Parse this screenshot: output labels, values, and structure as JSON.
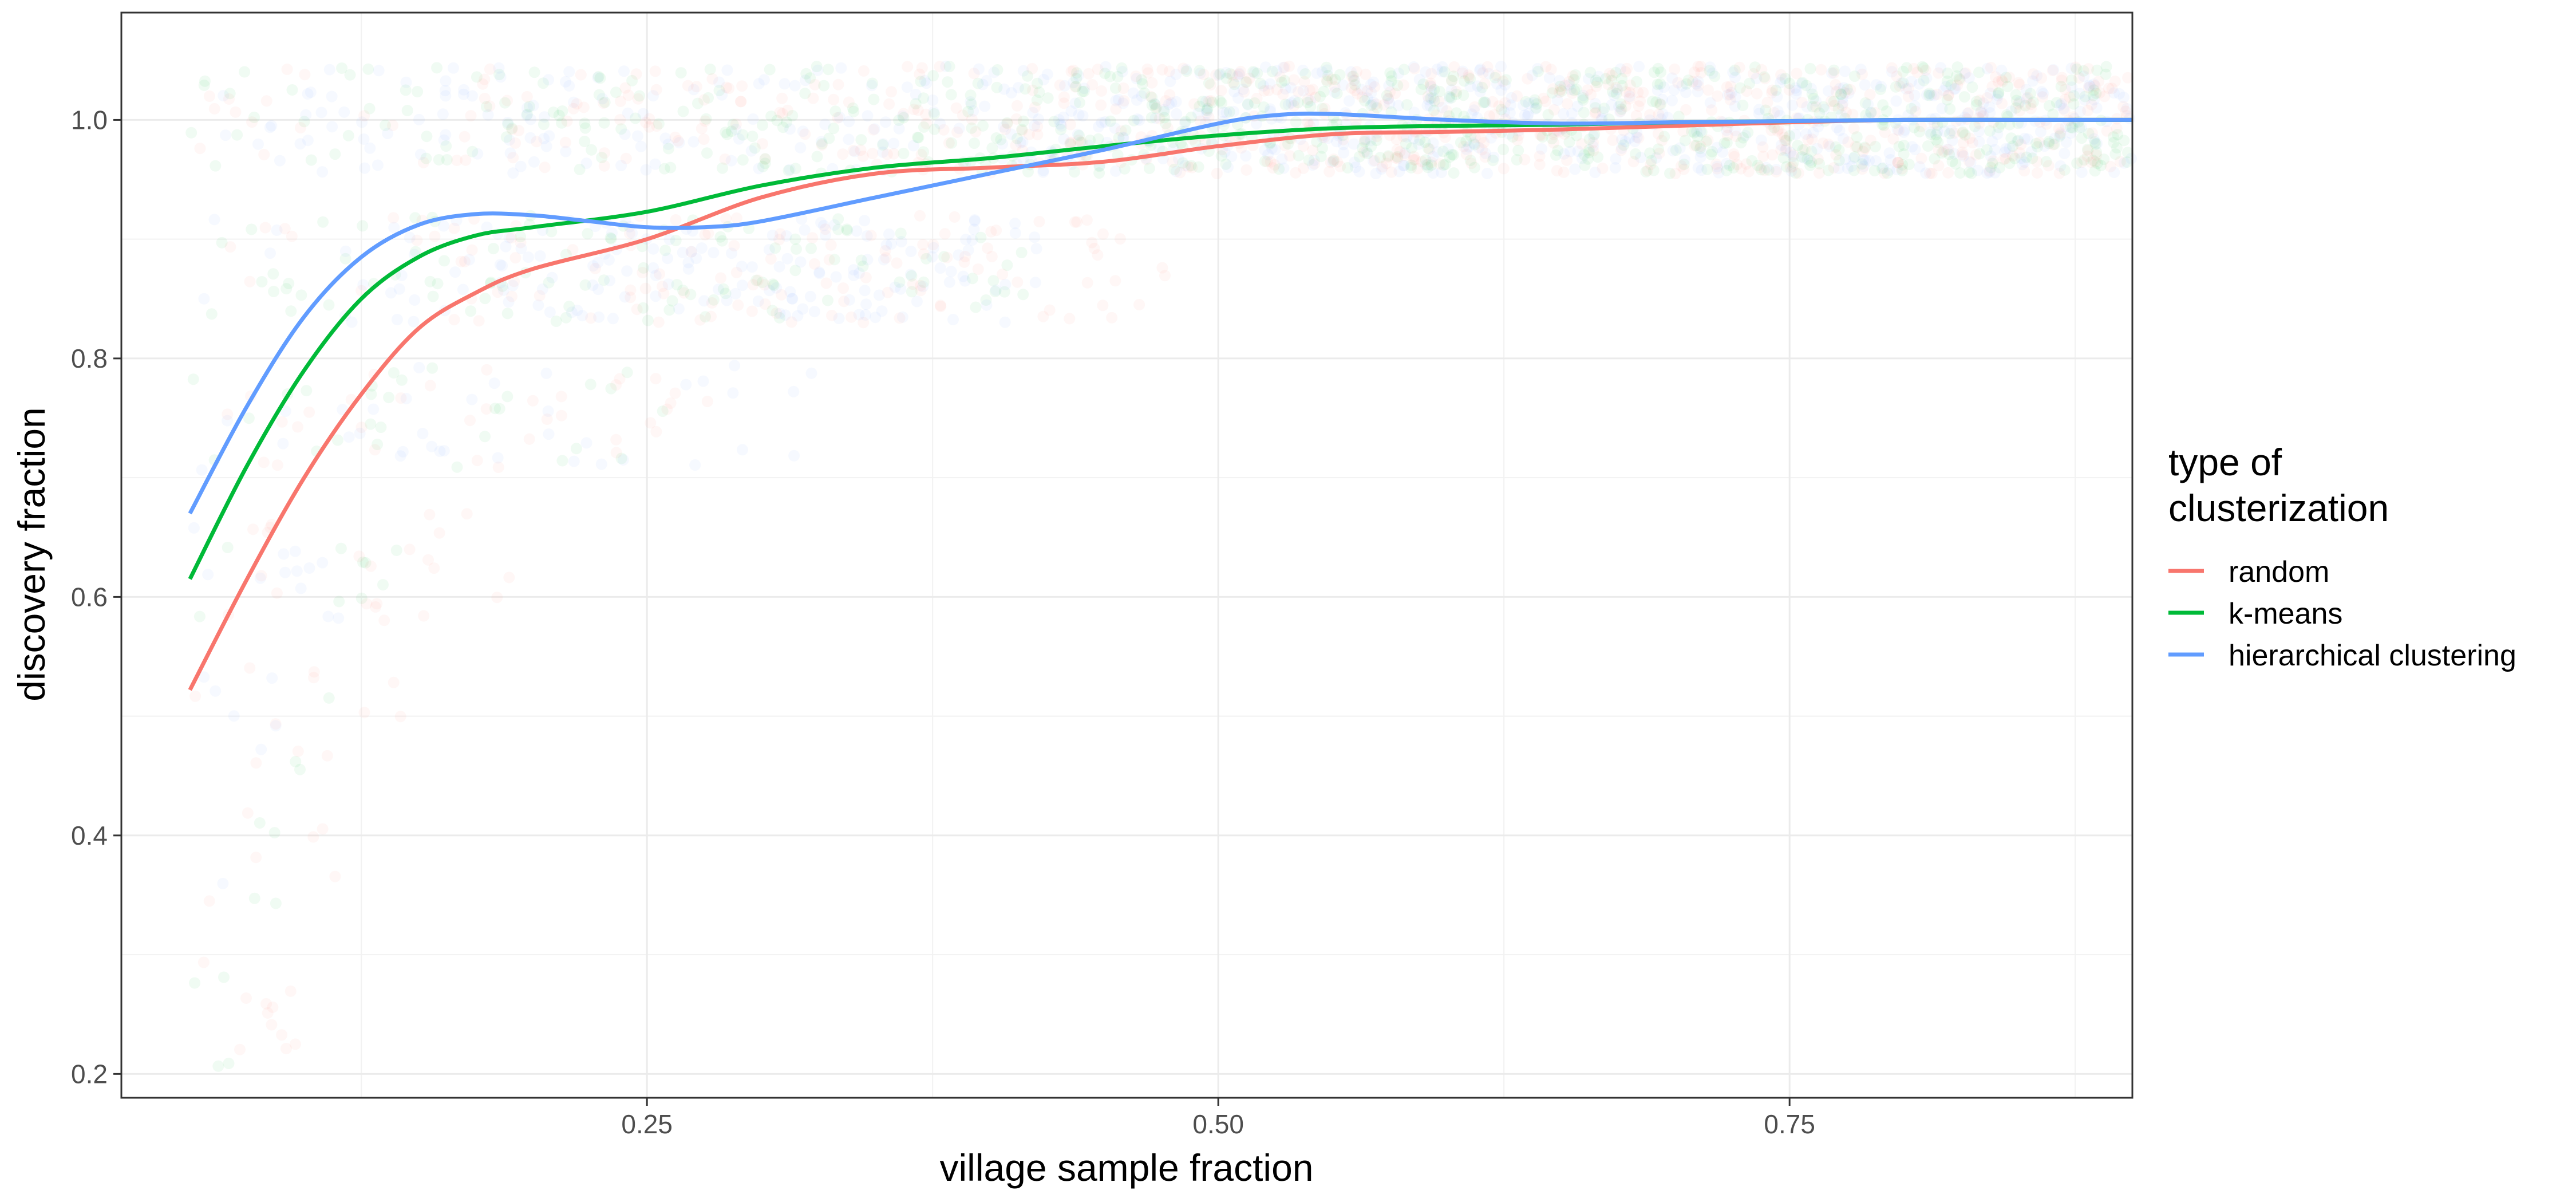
{
  "chart_data": {
    "type": "line",
    "title": "",
    "xlabel": "village sample fraction",
    "ylabel": "discovery fraction",
    "xlim": [
      0.02,
      0.9
    ],
    "ylim": [
      0.18,
      1.09
    ],
    "x_ticks": [
      0.25,
      0.5,
      0.75
    ],
    "x_tick_labels": [
      "0.25",
      "0.50",
      "0.75"
    ],
    "y_ticks": [
      0.2,
      0.4,
      0.6,
      0.8,
      1.0
    ],
    "y_tick_labels": [
      "0.2",
      "0.4",
      "0.6",
      "0.8",
      "1.0"
    ],
    "grid": true,
    "legend": {
      "title_lines": [
        "type of",
        "clusterization"
      ],
      "placement": "right",
      "entries": [
        "random",
        "k-means",
        "hierarchical clustering"
      ]
    },
    "series": [
      {
        "name": "random",
        "color": "#F8766D",
        "x": [
          0.05,
          0.075,
          0.1,
          0.125,
          0.15,
          0.175,
          0.2,
          0.25,
          0.3,
          0.35,
          0.4,
          0.45,
          0.5,
          0.55,
          0.6,
          0.65,
          0.7,
          0.75,
          0.8,
          0.85,
          0.9
        ],
        "y": [
          0.522,
          0.615,
          0.7,
          0.77,
          0.825,
          0.855,
          0.875,
          0.9,
          0.935,
          0.955,
          0.96,
          0.965,
          0.978,
          0.988,
          0.99,
          0.992,
          0.995,
          0.998,
          1.0,
          1.0,
          1.0
        ]
      },
      {
        "name": "k-means",
        "color": "#00BA38",
        "x": [
          0.05,
          0.075,
          0.1,
          0.125,
          0.15,
          0.175,
          0.2,
          0.25,
          0.3,
          0.35,
          0.4,
          0.45,
          0.5,
          0.55,
          0.6,
          0.65,
          0.7,
          0.75,
          0.8,
          0.85,
          0.9
        ],
        "y": [
          0.615,
          0.71,
          0.79,
          0.85,
          0.885,
          0.903,
          0.91,
          0.923,
          0.945,
          0.96,
          0.968,
          0.978,
          0.987,
          0.993,
          0.995,
          0.996,
          0.998,
          0.999,
          1.0,
          1.0,
          1.0
        ]
      },
      {
        "name": "hierarchical clustering",
        "color": "#619CFF",
        "x": [
          0.05,
          0.075,
          0.1,
          0.125,
          0.15,
          0.175,
          0.2,
          0.225,
          0.25,
          0.275,
          0.3,
          0.35,
          0.4,
          0.45,
          0.5,
          0.525,
          0.55,
          0.6,
          0.65,
          0.7,
          0.75,
          0.8,
          0.85,
          0.9
        ],
        "y": [
          0.67,
          0.76,
          0.835,
          0.885,
          0.912,
          0.921,
          0.92,
          0.915,
          0.91,
          0.91,
          0.915,
          0.935,
          0.955,
          0.975,
          0.997,
          1.004,
          1.005,
          1.0,
          0.997,
          0.998,
          0.999,
          1.0,
          1.0,
          1.0
        ]
      }
    ]
  }
}
